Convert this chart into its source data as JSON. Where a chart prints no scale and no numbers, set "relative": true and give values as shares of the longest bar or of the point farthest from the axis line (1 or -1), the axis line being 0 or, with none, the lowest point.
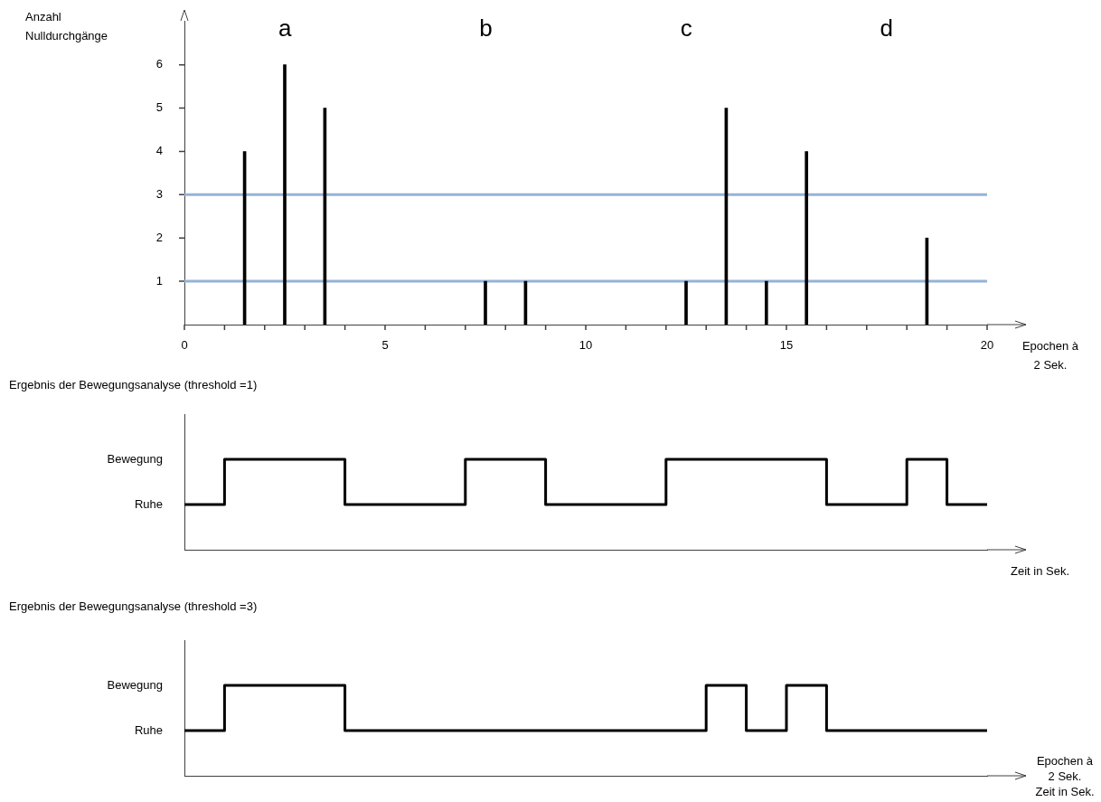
{
  "chart_data": [
    {
      "type": "bar",
      "ylabel": "Anzahl Nulldurchgänge",
      "xlabel": "Epochen à 2 Sek.",
      "x": [
        1.5,
        2.5,
        3.5,
        7.5,
        8.5,
        12.5,
        13.5,
        14.5,
        15.5,
        18.5
      ],
      "values": [
        4,
        6,
        5,
        1,
        1,
        1,
        5,
        1,
        4,
        2
      ],
      "color": "#000000",
      "xlim": [
        0,
        20
      ],
      "xticks": [
        0,
        {
          "value": 1,
          "label": null
        },
        {
          "value": 2,
          "label": null
        },
        {
          "value": 3,
          "label": null
        },
        {
          "value": 4,
          "label": null
        },
        5,
        {
          "value": 6,
          "label": null
        },
        {
          "value": 7,
          "label": null
        },
        {
          "value": 8,
          "label": null
        },
        {
          "value": 9,
          "label": null
        },
        10,
        {
          "value": 11,
          "label": null
        },
        {
          "value": 12,
          "label": null
        },
        {
          "value": 13,
          "label": null
        },
        {
          "value": 14,
          "label": null
        },
        15,
        {
          "value": 16,
          "label": null
        },
        {
          "value": 17,
          "label": null
        },
        {
          "value": 18,
          "label": null
        },
        {
          "value": 19,
          "label": null
        },
        20
      ],
      "ylim": [
        0,
        7
      ],
      "yticks": [
        1,
        2,
        3,
        4,
        5,
        6
      ],
      "ref_lines": [
        {
          "axis": "y",
          "value": 1,
          "color": "#95b3d7"
        },
        {
          "axis": "y",
          "value": 3,
          "color": "#95b3d7"
        }
      ],
      "annotations": [
        "a",
        "b",
        "c",
        "d"
      ]
    },
    {
      "type": "step",
      "relative": true,
      "title": "Ergebnis der Bewegungsanalyse  (threshold =1)",
      "xlabel": "Zeit in Sek.",
      "x": [
        0,
        1,
        4,
        7,
        9,
        12,
        16,
        18,
        19,
        20
      ],
      "values": [
        0.5,
        1,
        0.5,
        1,
        0.5,
        1,
        0.5,
        1,
        0.5,
        0.5
      ],
      "color": "#000000",
      "xlim": [
        0,
        20
      ],
      "annotations": [
        "Ruhe",
        "Bewegung"
      ]
    },
    {
      "type": "step",
      "relative": true,
      "title": "Ergebnis der Bewegungsanalyse  (threshold =3)",
      "xlabel": "Zeit in Sek.",
      "x": [
        0,
        1,
        4,
        13,
        14,
        15,
        16,
        20
      ],
      "values": [
        0.5,
        1,
        0.5,
        1,
        0.5,
        1,
        0.5,
        0.5
      ],
      "color": "#000000",
      "xlim": [
        0,
        20
      ],
      "annotations": [
        "Ruhe",
        "Bewegung",
        "Epochen à 2 Sek."
      ]
    }
  ]
}
